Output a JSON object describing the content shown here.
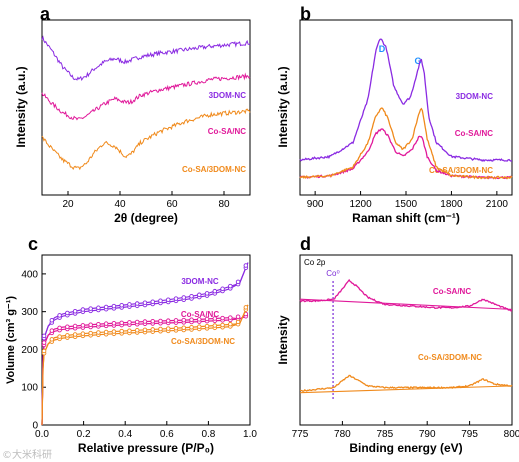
{
  "watermark": "©大米科研",
  "colors": {
    "purple": "#8a2be2",
    "magenta": "#e0199a",
    "orange": "#f08a1c",
    "co0": "#7b2bd6",
    "d_g_label": "#1e90ff"
  },
  "chart_data": [
    {
      "panel": "a",
      "type": "line",
      "xlabel": "2θ (degree)",
      "ylabel": "Intensity (a.u.)",
      "xlim": [
        10,
        90
      ],
      "xticks": [
        20,
        40,
        60,
        80
      ],
      "series": [
        {
          "name": "3DOM-NC",
          "color": "#8a2be2",
          "x": [
            10,
            14,
            18,
            22,
            24,
            27,
            30,
            34,
            38,
            42,
            44,
            48,
            55,
            65,
            75,
            90
          ],
          "y": [
            0.9,
            0.82,
            0.73,
            0.67,
            0.66,
            0.68,
            0.72,
            0.76,
            0.78,
            0.76,
            0.77,
            0.79,
            0.81,
            0.83,
            0.85,
            0.87
          ]
        },
        {
          "name": "Co-SA/NC",
          "color": "#e0199a",
          "x": [
            10,
            14,
            18,
            22,
            24,
            27,
            30,
            34,
            38,
            42,
            44,
            48,
            55,
            65,
            75,
            90
          ],
          "y": [
            0.58,
            0.52,
            0.47,
            0.44,
            0.43,
            0.45,
            0.48,
            0.52,
            0.55,
            0.53,
            0.53,
            0.57,
            0.6,
            0.63,
            0.66,
            0.68
          ]
        },
        {
          "name": "Co-SA/3DOM-NC",
          "color": "#f08a1c",
          "x": [
            10,
            14,
            18,
            22,
            24,
            27,
            30,
            34,
            38,
            42,
            44,
            48,
            55,
            65,
            75,
            90
          ],
          "y": [
            0.33,
            0.26,
            0.2,
            0.16,
            0.15,
            0.18,
            0.24,
            0.3,
            0.28,
            0.22,
            0.23,
            0.3,
            0.36,
            0.42,
            0.46,
            0.48
          ]
        }
      ]
    },
    {
      "panel": "b",
      "type": "line",
      "xlabel": "Raman shift (cm⁻¹)",
      "ylabel": "Intensity (a.u.)",
      "xlim": [
        800,
        2200
      ],
      "xticks": [
        900,
        1200,
        1500,
        1800,
        2100
      ],
      "annotations": [
        "D",
        "G"
      ],
      "series": [
        {
          "name": "3DOM-NC",
          "color": "#8a2be2",
          "x": [
            800,
            1000,
            1150,
            1250,
            1300,
            1330,
            1370,
            1420,
            1480,
            1530,
            1580,
            1600,
            1620,
            1650,
            1700,
            1800,
            2000,
            2200
          ],
          "y": [
            0.2,
            0.22,
            0.3,
            0.55,
            0.82,
            0.9,
            0.84,
            0.62,
            0.52,
            0.56,
            0.72,
            0.78,
            0.7,
            0.45,
            0.3,
            0.22,
            0.2,
            0.2
          ]
        },
        {
          "name": "Co-SA/NC",
          "color": "#e0199a",
          "x": [
            800,
            1000,
            1150,
            1250,
            1300,
            1340,
            1380,
            1430,
            1480,
            1540,
            1590,
            1610,
            1640,
            1700,
            1800,
            2000,
            2200
          ],
          "y": [
            0.1,
            0.11,
            0.15,
            0.25,
            0.35,
            0.38,
            0.34,
            0.25,
            0.22,
            0.26,
            0.34,
            0.32,
            0.22,
            0.14,
            0.11,
            0.1,
            0.1
          ]
        },
        {
          "name": "Co-SA/3DOM-NC",
          "color": "#f08a1c",
          "x": [
            800,
            1000,
            1150,
            1250,
            1300,
            1340,
            1380,
            1430,
            1480,
            1540,
            1590,
            1605,
            1640,
            1700,
            1800,
            2000,
            2200
          ],
          "y": [
            0.1,
            0.11,
            0.16,
            0.3,
            0.45,
            0.5,
            0.44,
            0.3,
            0.26,
            0.32,
            0.48,
            0.5,
            0.32,
            0.16,
            0.11,
            0.1,
            0.1
          ]
        }
      ]
    },
    {
      "panel": "c",
      "type": "line",
      "xlabel": "Relative pressure (P/P₀)",
      "ylabel": "Volume (cm³ g⁻¹)",
      "xlim": [
        0,
        1.0
      ],
      "ylim": [
        0,
        450
      ],
      "xticks": [
        "0.0",
        "0.2",
        "0.4",
        "0.6",
        "0.8",
        "1.0"
      ],
      "yticks": [
        "0",
        "100",
        "200",
        "300",
        "400"
      ],
      "series": [
        {
          "name": "3DOM-NC",
          "color": "#8a2be2",
          "x": [
            0.0,
            0.005,
            0.01,
            0.03,
            0.06,
            0.1,
            0.2,
            0.3,
            0.4,
            0.5,
            0.6,
            0.7,
            0.8,
            0.9,
            0.95,
            0.99
          ],
          "y": [
            0,
            180,
            230,
            262,
            278,
            288,
            300,
            306,
            312,
            318,
            325,
            333,
            343,
            360,
            375,
            430
          ]
        },
        {
          "name": "Co-SA/NC",
          "color": "#e0199a",
          "x": [
            0.0,
            0.005,
            0.01,
            0.03,
            0.06,
            0.1,
            0.2,
            0.3,
            0.4,
            0.5,
            0.6,
            0.7,
            0.8,
            0.9,
            0.95,
            0.99
          ],
          "y": [
            0,
            170,
            212,
            238,
            248,
            253,
            258,
            262,
            265,
            268,
            270,
            272,
            275,
            278,
            281,
            290
          ]
        },
        {
          "name": "Co-SA/3DOM-NC",
          "color": "#f08a1c",
          "x": [
            0.0,
            0.005,
            0.01,
            0.03,
            0.06,
            0.1,
            0.2,
            0.3,
            0.4,
            0.5,
            0.6,
            0.7,
            0.8,
            0.9,
            0.95,
            0.99
          ],
          "y": [
            0,
            150,
            190,
            215,
            225,
            230,
            236,
            240,
            243,
            246,
            249,
            252,
            256,
            260,
            268,
            318
          ]
        }
      ]
    },
    {
      "panel": "d",
      "type": "line",
      "title": "Co 2p",
      "xlabel": "Binding energy (eV)",
      "ylabel": "Intensity",
      "xlim": [
        775,
        800
      ],
      "xticks": [
        775,
        780,
        785,
        790,
        795,
        800
      ],
      "reference_line": {
        "label": "Co⁰",
        "x": 778.9
      },
      "series": [
        {
          "name": "Co-SA/NC",
          "color": "#e0199a",
          "x": [
            775,
            777,
            779,
            780,
            780.8,
            781.6,
            783,
            785,
            788,
            791,
            793,
            795,
            796.6,
            798,
            800
          ],
          "y": [
            0.73,
            0.73,
            0.74,
            0.8,
            0.85,
            0.82,
            0.75,
            0.71,
            0.7,
            0.69,
            0.69,
            0.7,
            0.74,
            0.71,
            0.67
          ]
        },
        {
          "name": "Co-SA/3DOM-NC",
          "color": "#f08a1c",
          "x": [
            775,
            777,
            779,
            780,
            780.8,
            781.6,
            783,
            785,
            788,
            791,
            793,
            795,
            796.6,
            798,
            800
          ],
          "y": [
            0.2,
            0.21,
            0.22,
            0.26,
            0.29,
            0.27,
            0.23,
            0.22,
            0.22,
            0.22,
            0.22,
            0.23,
            0.27,
            0.24,
            0.23
          ]
        }
      ],
      "baselines": [
        {
          "color": "#e0199a",
          "x": [
            775,
            800
          ],
          "y": [
            0.74,
            0.68
          ]
        },
        {
          "color": "#f08a1c",
          "x": [
            775,
            800
          ],
          "y": [
            0.19,
            0.23
          ]
        }
      ]
    }
  ],
  "panel_a": {
    "letter": "a",
    "label_1": "3DOM-NC",
    "label_2": "Co-SA/NC",
    "label_3": "Co-SA/3DOM-NC"
  },
  "panel_b": {
    "letter": "b",
    "label_1": "3DOM-NC",
    "label_2": "Co-SA/NC",
    "label_3": "Co-SA/3DOM-NC",
    "peak_d": "D",
    "peak_g": "G"
  },
  "panel_c": {
    "letter": "c",
    "label_1": "3DOM-NC",
    "label_2": "Co-SA/NC",
    "label_3": "Co-SA/3DOM-NC"
  },
  "panel_d": {
    "letter": "d",
    "label_1": "Co-SA/NC",
    "label_2": "Co-SA/3DOM-NC"
  }
}
